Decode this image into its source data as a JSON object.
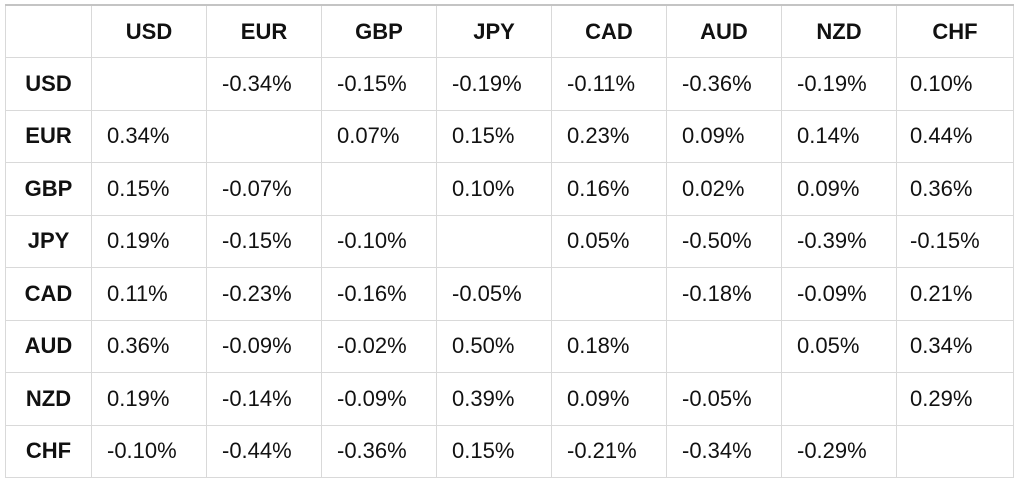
{
  "currencies": [
    "USD",
    "EUR",
    "GBP",
    "JPY",
    "CAD",
    "AUD",
    "NZD",
    "CHF"
  ],
  "corner_label": "",
  "rows": [
    {
      "label": "USD",
      "cells": [
        "",
        "-0.34%",
        "-0.15%",
        "-0.19%",
        "-0.11%",
        "-0.36%",
        "-0.19%",
        "0.10%"
      ]
    },
    {
      "label": "EUR",
      "cells": [
        "0.34%",
        "",
        "0.07%",
        "0.15%",
        "0.23%",
        "0.09%",
        "0.14%",
        "0.44%"
      ]
    },
    {
      "label": "GBP",
      "cells": [
        "0.15%",
        "-0.07%",
        "",
        "0.10%",
        "0.16%",
        "0.02%",
        "0.09%",
        "0.36%"
      ]
    },
    {
      "label": "JPY",
      "cells": [
        "0.19%",
        "-0.15%",
        "-0.10%",
        "",
        "0.05%",
        "-0.50%",
        "-0.39%",
        "-0.15%"
      ]
    },
    {
      "label": "CAD",
      "cells": [
        "0.11%",
        "-0.23%",
        "-0.16%",
        "-0.05%",
        "",
        "-0.18%",
        "-0.09%",
        "0.21%"
      ]
    },
    {
      "label": "AUD",
      "cells": [
        "0.36%",
        "-0.09%",
        "-0.02%",
        "0.50%",
        "0.18%",
        "",
        "0.05%",
        "0.34%"
      ]
    },
    {
      "label": "NZD",
      "cells": [
        "0.19%",
        "-0.14%",
        "-0.09%",
        "0.39%",
        "0.09%",
        "-0.05%",
        "",
        "0.29%"
      ]
    },
    {
      "label": "CHF",
      "cells": [
        "-0.10%",
        "-0.44%",
        "-0.36%",
        "0.15%",
        "-0.21%",
        "-0.34%",
        "-0.29%",
        ""
      ]
    }
  ]
}
